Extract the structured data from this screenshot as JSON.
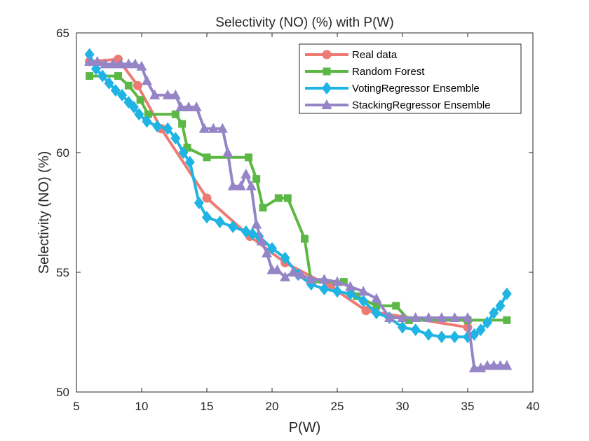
{
  "chart_data": {
    "type": "line",
    "title": "Selectivity (NO) (%) with P(W)",
    "xlabel": "P(W)",
    "ylabel": "Selectivity (NO) (%)",
    "xlim": [
      5,
      40
    ],
    "ylim": [
      50,
      65
    ],
    "xticks": [
      5,
      10,
      15,
      20,
      25,
      30,
      35,
      40
    ],
    "yticks": [
      50,
      55,
      60,
      65
    ],
    "xtick_labels": [
      "5",
      "10",
      "15",
      "20",
      "25",
      "30",
      "35",
      "40"
    ],
    "ytick_labels": [
      "50",
      "55",
      "60",
      "65"
    ],
    "grid": false,
    "legend_position": "top-right",
    "series": [
      {
        "name": "Real data",
        "color": "#ED7B73",
        "marker": "circle",
        "x": [
          6,
          8.2,
          9.7,
          11.5,
          15.0,
          18.3,
          21.0,
          24.5,
          27.2,
          35.0
        ],
        "y": [
          63.8,
          63.9,
          62.8,
          61.0,
          58.1,
          56.5,
          55.4,
          54.4,
          53.4,
          52.7
        ]
      },
      {
        "name": "Random Forest",
        "color": "#5CB844",
        "marker": "square",
        "x": [
          6,
          8.2,
          9.0,
          9.9,
          10.5,
          12.6,
          13.1,
          13.5,
          15.0,
          18.2,
          18.8,
          19.3,
          20.5,
          21.2,
          22.5,
          23.0,
          25.5,
          26.5,
          28.0,
          29.5,
          30.5,
          35.0,
          38.0
        ],
        "y": [
          63.2,
          63.2,
          62.8,
          62.2,
          61.6,
          61.6,
          61.2,
          60.2,
          59.8,
          59.8,
          58.9,
          57.7,
          58.1,
          58.1,
          56.4,
          54.6,
          54.6,
          54.0,
          53.6,
          53.6,
          53.0,
          53.0,
          53.0
        ]
      },
      {
        "name": "VotingRegressor Ensemble",
        "color": "#1FB4E4",
        "marker": "diamond",
        "x": [
          6,
          6.5,
          7.0,
          7.5,
          8.0,
          8.5,
          9.0,
          9.4,
          9.8,
          10.4,
          11.2,
          12.0,
          12.6,
          13.2,
          13.7,
          14.4,
          15.0,
          16.0,
          17.0,
          18.0,
          18.5,
          19.0,
          20.0,
          21.0,
          22.0,
          23.0,
          24.0,
          25.0,
          26.0,
          27.0,
          28.0,
          29.0,
          30.0,
          31.0,
          32.0,
          33.0,
          34.0,
          35.0,
          35.5,
          36.0,
          36.5,
          37.0,
          37.5,
          38.0
        ],
        "y": [
          64.1,
          63.5,
          63.2,
          62.9,
          62.6,
          62.4,
          62.1,
          61.9,
          61.6,
          61.3,
          61.1,
          61.0,
          60.6,
          60.0,
          59.6,
          57.9,
          57.3,
          57.1,
          56.9,
          56.7,
          56.6,
          56.5,
          56.0,
          55.6,
          54.9,
          54.5,
          54.3,
          54.2,
          54.1,
          53.8,
          53.3,
          53.1,
          52.7,
          52.6,
          52.4,
          52.3,
          52.3,
          52.3,
          52.4,
          52.6,
          52.9,
          53.3,
          53.6,
          54.1
        ]
      },
      {
        "name": "StackingRegressor Ensemble",
        "color": "#9585C7",
        "marker": "triangle",
        "x": [
          6,
          6.6,
          7.2,
          7.8,
          8.4,
          9.0,
          9.5,
          10.0,
          10.4,
          11.0,
          12.0,
          12.6,
          13.0,
          13.6,
          14.2,
          14.8,
          15.5,
          16.2,
          16.6,
          17.0,
          17.6,
          18.0,
          18.4,
          18.8,
          19.2,
          19.6,
          20.0,
          20.4,
          21.0,
          21.6,
          22.2,
          23.0,
          24.0,
          25.0,
          26.0,
          27.0,
          28.0,
          29.0,
          30.0,
          31.0,
          32.0,
          33.0,
          34.0,
          35.0,
          35.5,
          36.0,
          36.5,
          37.0,
          37.5,
          38.0
        ],
        "y": [
          63.8,
          63.8,
          63.7,
          63.7,
          63.7,
          63.7,
          63.7,
          63.6,
          63.0,
          62.4,
          62.4,
          62.4,
          61.9,
          61.9,
          61.9,
          61.0,
          61.0,
          61.0,
          60.0,
          58.6,
          58.6,
          59.1,
          58.6,
          57.0,
          56.3,
          55.8,
          55.1,
          55.1,
          54.8,
          55.0,
          54.9,
          54.7,
          54.7,
          54.6,
          54.4,
          54.2,
          53.9,
          53.1,
          53.1,
          53.1,
          53.1,
          53.1,
          53.1,
          53.1,
          51.0,
          51.0,
          51.1,
          51.1,
          51.1,
          51.1
        ]
      }
    ]
  }
}
